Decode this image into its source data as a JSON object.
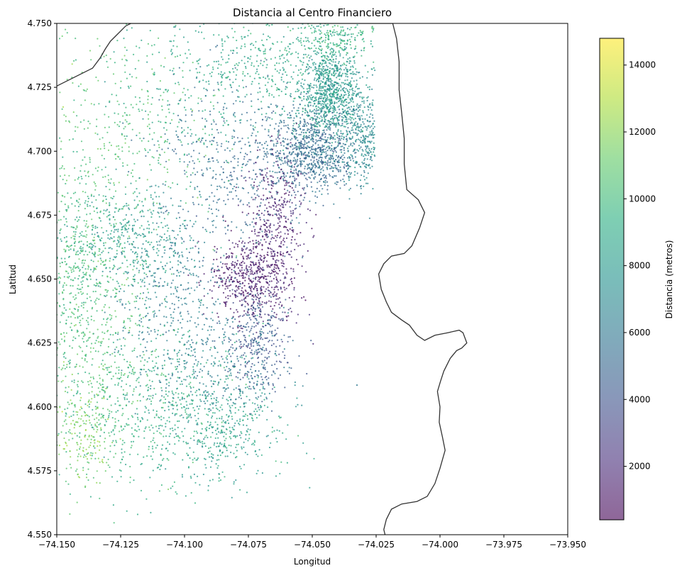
{
  "chart_data": {
    "type": "scatter",
    "title": "Distancia al Centro Financiero",
    "xlabel": "Longitud",
    "ylabel": "Latitud",
    "xlim": [
      -74.15,
      -73.95
    ],
    "ylim": [
      4.55,
      4.75
    ],
    "x_ticks": [
      "−74.150",
      "−74.125",
      "−74.100",
      "−74.075",
      "−74.050",
      "−74.025",
      "−74.000",
      "−73.975",
      "−73.950"
    ],
    "y_ticks": [
      "4.550",
      "4.575",
      "4.600",
      "4.625",
      "4.650",
      "4.675",
      "4.700",
      "4.725",
      "4.750"
    ],
    "colorbar": {
      "label": "Distancia (metros)",
      "range": [
        400,
        14800
      ],
      "ticks": [
        "2000",
        "4000",
        "6000",
        "8000",
        "10000",
        "12000",
        "14000"
      ],
      "colormap": "viridis",
      "alpha": 0.6
    },
    "grid": false,
    "marker_color_encodes": "Distancia (metros)",
    "clusters": [
      {
        "x": -74.043,
        "y": 4.722,
        "sx": 0.006,
        "sy": 0.01,
        "n": 900,
        "d": 8000
      },
      {
        "x": -74.05,
        "y": 4.7,
        "sx": 0.008,
        "sy": 0.008,
        "n": 800,
        "d": 5300
      },
      {
        "x": -74.03,
        "y": 4.705,
        "sx": 0.004,
        "sy": 0.01,
        "n": 350,
        "d": 7000
      },
      {
        "x": -74.065,
        "y": 4.67,
        "sx": 0.006,
        "sy": 0.015,
        "n": 450,
        "d": 1500
      },
      {
        "x": -74.075,
        "y": 4.65,
        "sx": 0.008,
        "sy": 0.008,
        "n": 500,
        "d": 1300
      },
      {
        "x": -74.072,
        "y": 4.625,
        "sx": 0.006,
        "sy": 0.012,
        "n": 350,
        "d": 4200
      },
      {
        "x": -74.08,
        "y": 4.695,
        "sx": 0.015,
        "sy": 0.018,
        "n": 500,
        "d": 5500
      },
      {
        "x": -74.065,
        "y": 4.735,
        "sx": 0.015,
        "sy": 0.012,
        "n": 350,
        "d": 9000
      },
      {
        "x": -74.12,
        "y": 4.665,
        "sx": 0.012,
        "sy": 0.01,
        "n": 400,
        "d": 8200
      },
      {
        "x": -74.105,
        "y": 4.645,
        "sx": 0.012,
        "sy": 0.015,
        "n": 350,
        "d": 6300
      },
      {
        "x": -74.135,
        "y": 4.63,
        "sx": 0.012,
        "sy": 0.03,
        "n": 650,
        "d": 10500
      },
      {
        "x": -74.11,
        "y": 4.6,
        "sx": 0.02,
        "sy": 0.015,
        "n": 600,
        "d": 9300
      },
      {
        "x": -74.085,
        "y": 4.59,
        "sx": 0.012,
        "sy": 0.01,
        "n": 300,
        "d": 8300
      },
      {
        "x": -74.125,
        "y": 4.71,
        "sx": 0.02,
        "sy": 0.02,
        "n": 350,
        "d": 10500
      },
      {
        "x": -74.095,
        "y": 4.725,
        "sx": 0.02,
        "sy": 0.015,
        "n": 250,
        "d": 8800
      },
      {
        "x": -74.14,
        "y": 4.59,
        "sx": 0.006,
        "sy": 0.01,
        "n": 150,
        "d": 11800
      },
      {
        "x": -74.04,
        "y": 4.745,
        "sx": 0.008,
        "sy": 0.005,
        "n": 200,
        "d": 9800
      },
      {
        "x": -74.09,
        "y": 4.615,
        "sx": 0.015,
        "sy": 0.01,
        "n": 300,
        "d": 6500
      },
      {
        "x": -74.142,
        "y": 4.66,
        "sx": 0.006,
        "sy": 0.02,
        "n": 250,
        "d": 9800
      }
    ],
    "boundary": [
      [
        -74.15,
        4.7255
      ],
      [
        -74.14,
        4.7305
      ],
      [
        -74.136,
        4.7325
      ],
      [
        -74.133,
        4.7365
      ],
      [
        -74.131,
        4.74
      ],
      [
        -74.129,
        4.743
      ],
      [
        -74.127,
        4.745
      ],
      [
        -74.125,
        4.747
      ],
      [
        -74.123,
        4.749
      ],
      [
        -74.121,
        4.75
      ],
      [
        -74.0185,
        4.75
      ],
      [
        -74.017,
        4.744
      ],
      [
        -74.016,
        4.735
      ],
      [
        -74.016,
        4.724
      ],
      [
        -74.015,
        4.715
      ],
      [
        -74.014,
        4.705
      ],
      [
        -74.014,
        4.695
      ],
      [
        -74.013,
        4.685
      ],
      [
        -74.0085,
        4.681
      ],
      [
        -74.006,
        4.676
      ],
      [
        -74.008,
        4.67
      ],
      [
        -74.011,
        4.663
      ],
      [
        -74.014,
        4.66
      ],
      [
        -74.019,
        4.659
      ],
      [
        -74.022,
        4.656
      ],
      [
        -74.024,
        4.652
      ],
      [
        -74.023,
        4.646
      ],
      [
        -74.021,
        4.641
      ],
      [
        -74.019,
        4.637
      ],
      [
        -74.015,
        4.634
      ],
      [
        -74.012,
        4.632
      ],
      [
        -74.009,
        4.628
      ],
      [
        -74.006,
        4.626
      ],
      [
        -74.002,
        4.628
      ],
      [
        -73.997,
        4.629
      ],
      [
        -73.9925,
        4.63
      ],
      [
        -73.991,
        4.629
      ],
      [
        -73.9895,
        4.625
      ],
      [
        -73.9915,
        4.623
      ],
      [
        -73.9935,
        4.622
      ],
      [
        -73.996,
        4.619
      ],
      [
        -73.9985,
        4.614
      ],
      [
        -73.9998,
        4.61
      ],
      [
        -74.001,
        4.606
      ],
      [
        -74.0,
        4.6
      ],
      [
        -74.0003,
        4.594
      ],
      [
        -73.999,
        4.588
      ],
      [
        -73.998,
        4.583
      ],
      [
        -74.0,
        4.576
      ],
      [
        -74.002,
        4.57
      ],
      [
        -74.005,
        4.565
      ],
      [
        -74.009,
        4.563
      ],
      [
        -74.015,
        4.562
      ],
      [
        -74.019,
        4.56
      ],
      [
        -74.021,
        4.556
      ],
      [
        -74.022,
        4.552
      ],
      [
        -74.0215,
        4.55
      ]
    ],
    "outlier_points": [
      {
        "x": -74.0325,
        "y": 4.6085,
        "d": 6000
      }
    ]
  }
}
